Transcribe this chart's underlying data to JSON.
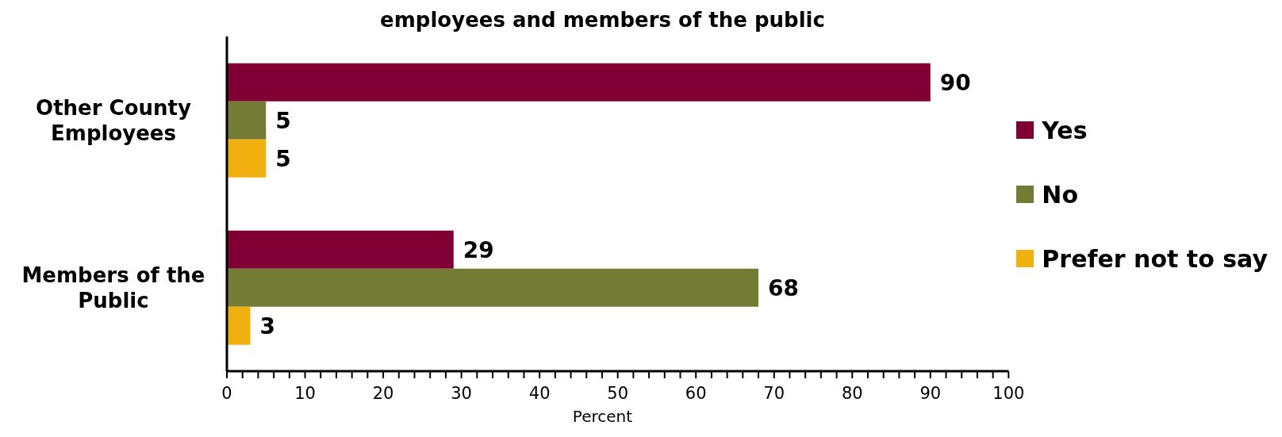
{
  "chart_data": {
    "type": "bar",
    "orientation": "horizontal",
    "title": "employees and members of the public",
    "xlabel": "Percent",
    "categories": [
      "Other County Employees",
      "Members of the Public"
    ],
    "series": [
      {
        "name": "Yes",
        "color": "#800034",
        "values": [
          90,
          29
        ]
      },
      {
        "name": "No",
        "color": "#737b34",
        "values": [
          5,
          68
        ]
      },
      {
        "name": "Prefer not to say",
        "color": "#f0b110",
        "values": [
          5,
          3
        ]
      }
    ],
    "xlim": [
      0,
      100
    ],
    "xticks": [
      0,
      {
        "value": 2,
        "label": null
      },
      {
        "value": 4,
        "label": null
      },
      {
        "value": 6,
        "label": null
      },
      {
        "value": 8,
        "label": null
      },
      10,
      {
        "value": 12,
        "label": null
      },
      {
        "value": 14,
        "label": null
      },
      {
        "value": 16,
        "label": null
      },
      {
        "value": 18,
        "label": null
      },
      20,
      {
        "value": 22,
        "label": null
      },
      {
        "value": 24,
        "label": null
      },
      {
        "value": 26,
        "label": null
      },
      {
        "value": 28,
        "label": null
      },
      30,
      {
        "value": 32,
        "label": null
      },
      {
        "value": 34,
        "label": null
      },
      {
        "value": 36,
        "label": null
      },
      {
        "value": 38,
        "label": null
      },
      40,
      {
        "value": 42,
        "label": null
      },
      {
        "value": 44,
        "label": null
      },
      {
        "value": 46,
        "label": null
      },
      {
        "value": 48,
        "label": null
      },
      50,
      {
        "value": 52,
        "label": null
      },
      {
        "value": 54,
        "label": null
      },
      {
        "value": 56,
        "label": null
      },
      {
        "value": 58,
        "label": null
      },
      60,
      {
        "value": 62,
        "label": null
      },
      {
        "value": 64,
        "label": null
      },
      {
        "value": 66,
        "label": null
      },
      {
        "value": 68,
        "label": null
      },
      70,
      {
        "value": 72,
        "label": null
      },
      {
        "value": 74,
        "label": null
      },
      {
        "value": 76,
        "label": null
      },
      {
        "value": 78,
        "label": null
      },
      80,
      {
        "value": 82,
        "label": null
      },
      {
        "value": 84,
        "label": null
      },
      {
        "value": 86,
        "label": null
      },
      {
        "value": 88,
        "label": null
      },
      90,
      {
        "value": 92,
        "label": null
      },
      {
        "value": 94,
        "label": null
      },
      {
        "value": 96,
        "label": null
      },
      {
        "value": 98,
        "label": null
      },
      100
    ],
    "data_labels": true,
    "legend": "right",
    "grid": false
  }
}
